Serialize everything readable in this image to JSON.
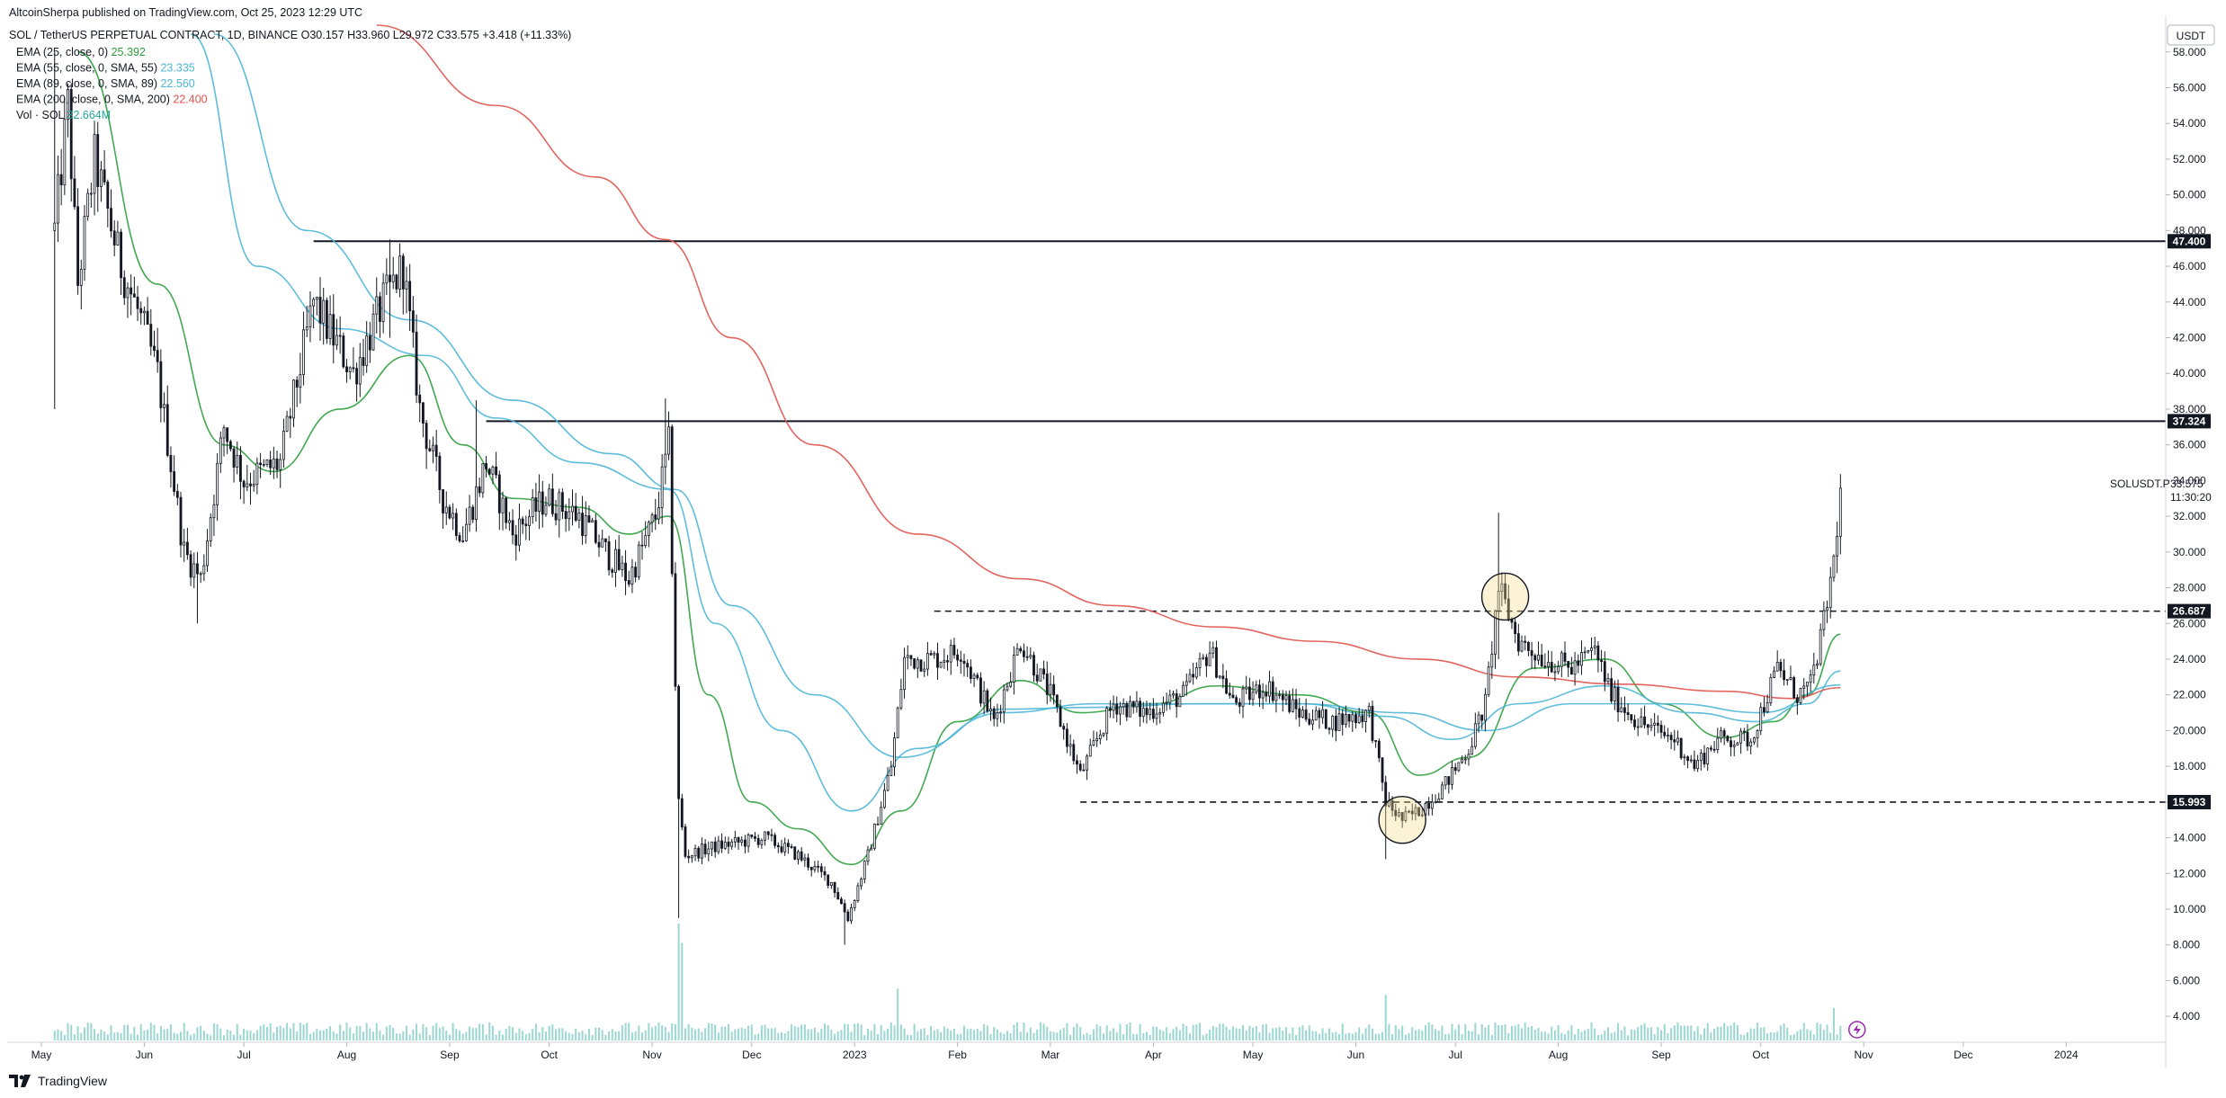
{
  "header": {
    "published": "AltcoinSherpa published on TradingView.com, Oct 25, 2023 12:29 UTC",
    "symbol": "SOL / TetherUS PERPETUAL CONTRACT, 1D, BINANCE",
    "ohlc": {
      "o": "O30.157",
      "h": "H33.960",
      "l": "L29.972",
      "c": "C33.575",
      "chg": "+3.418 (+11.33%)"
    }
  },
  "indicators": [
    {
      "label": "EMA (25, close, 0)",
      "value": "25.392",
      "color": "#2e9e3e"
    },
    {
      "label": "EMA (55, close, 0, SMA, 55)",
      "value": "23.335",
      "color": "#4db6d6"
    },
    {
      "label": "EMA (89, close, 0, SMA, 89)",
      "value": "22.560",
      "color": "#4db6d6"
    },
    {
      "label": "EMA (200, close, 0, SMA, 200)",
      "value": "22.400",
      "color": "#e0544f"
    },
    {
      "label": "Vol · SOL",
      "value": "32.664M",
      "color": "#26a69a"
    }
  ],
  "axis": {
    "currency": "USDT",
    "symbol_tag": "SOLUSDT.P",
    "last_price": "33.575",
    "countdown": "11:30:20"
  },
  "footer": {
    "brand": "TradingView"
  },
  "chart_data": {
    "type": "candlestick",
    "title": "SOL / TetherUS PERPETUAL CONTRACT, 1D, BINANCE",
    "y_axis": {
      "min": 3,
      "max": 59.5,
      "position": "right",
      "ticks": [
        4,
        6,
        8,
        10,
        12,
        14,
        16,
        18,
        20,
        22,
        24,
        26,
        28,
        30,
        32,
        34,
        36,
        38,
        40,
        42,
        44,
        46,
        48,
        50,
        52,
        54,
        56,
        58
      ]
    },
    "x_axis": {
      "range": [
        "2022-05-01",
        "2024-01-31"
      ],
      "ticks": [
        {
          "date": "2022-05-01",
          "label": "May"
        },
        {
          "date": "2022-06-01",
          "label": "Jun"
        },
        {
          "date": "2022-07-01",
          "label": "Jul"
        },
        {
          "date": "2022-08-01",
          "label": "Aug"
        },
        {
          "date": "2022-09-01",
          "label": "Sep"
        },
        {
          "date": "2022-10-01",
          "label": "Oct"
        },
        {
          "date": "2022-11-01",
          "label": "Nov"
        },
        {
          "date": "2022-12-01",
          "label": "Dec"
        },
        {
          "date": "2023-01-01",
          "label": "2023"
        },
        {
          "date": "2023-02-01",
          "label": "Feb"
        },
        {
          "date": "2023-03-01",
          "label": "Mar"
        },
        {
          "date": "2023-04-01",
          "label": "Apr"
        },
        {
          "date": "2023-05-01",
          "label": "May"
        },
        {
          "date": "2023-06-01",
          "label": "Jun"
        },
        {
          "date": "2023-07-01",
          "label": "Jul"
        },
        {
          "date": "2023-08-01",
          "label": "Aug"
        },
        {
          "date": "2023-09-01",
          "label": "Sep"
        },
        {
          "date": "2023-10-01",
          "label": "Oct"
        },
        {
          "date": "2023-11-01",
          "label": "Nov"
        },
        {
          "date": "2023-12-01",
          "label": "Dec"
        },
        {
          "date": "2024-01-01",
          "label": "2024"
        }
      ]
    },
    "price_path": [
      [
        "2022-05-05",
        48
      ],
      [
        "2022-05-09",
        55
      ],
      [
        "2022-05-12",
        45
      ],
      [
        "2022-05-17",
        52
      ],
      [
        "2022-05-25",
        46
      ],
      [
        "2022-05-31",
        43
      ],
      [
        "2022-06-05",
        40
      ],
      [
        "2022-06-13",
        30
      ],
      [
        "2022-06-18",
        28.5
      ],
      [
        "2022-06-25",
        37
      ],
      [
        "2022-07-01",
        34
      ],
      [
        "2022-07-12",
        35
      ],
      [
        "2022-07-22",
        44
      ],
      [
        "2022-07-28",
        42
      ],
      [
        "2022-08-03",
        40
      ],
      [
        "2022-08-12",
        44
      ],
      [
        "2022-08-18",
        46
      ],
      [
        "2022-08-23",
        38
      ],
      [
        "2022-08-30",
        33
      ],
      [
        "2022-09-05",
        31
      ],
      [
        "2022-09-12",
        35
      ],
      [
        "2022-09-20",
        31
      ],
      [
        "2022-09-30",
        33
      ],
      [
        "2022-10-10",
        32
      ],
      [
        "2022-10-18",
        30
      ],
      [
        "2022-10-25",
        28.5
      ],
      [
        "2022-11-02",
        32
      ],
      [
        "2022-11-06",
        36
      ],
      [
        "2022-11-09",
        16
      ],
      [
        "2022-11-11",
        13
      ],
      [
        "2022-11-20",
        13.5
      ],
      [
        "2022-12-05",
        14
      ],
      [
        "2022-12-15",
        13
      ],
      [
        "2022-12-25",
        11.5
      ],
      [
        "2022-12-30",
        9.5
      ],
      [
        "2023-01-05",
        13
      ],
      [
        "2023-01-12",
        18
      ],
      [
        "2023-01-16",
        24
      ],
      [
        "2023-01-25",
        24
      ],
      [
        "2023-02-02",
        24.5
      ],
      [
        "2023-02-12",
        20.5
      ],
      [
        "2023-02-20",
        25
      ],
      [
        "2023-03-01",
        22
      ],
      [
        "2023-03-10",
        17.5
      ],
      [
        "2023-03-20",
        21.5
      ],
      [
        "2023-03-30",
        21
      ],
      [
        "2023-04-10",
        22
      ],
      [
        "2023-04-18",
        24.5
      ],
      [
        "2023-04-25",
        21.5
      ],
      [
        "2023-05-05",
        22.5
      ],
      [
        "2023-05-15",
        21
      ],
      [
        "2023-05-25",
        20.5
      ],
      [
        "2023-06-05",
        21
      ],
      [
        "2023-06-10",
        16
      ],
      [
        "2023-06-15",
        15
      ],
      [
        "2023-06-20",
        15.5
      ],
      [
        "2023-06-28",
        17
      ],
      [
        "2023-07-05",
        19
      ],
      [
        "2023-07-10",
        21.5
      ],
      [
        "2023-07-14",
        28
      ],
      [
        "2023-07-20",
        25
      ],
      [
        "2023-07-28",
        24
      ],
      [
        "2023-08-05",
        23.5
      ],
      [
        "2023-08-12",
        24.5
      ],
      [
        "2023-08-17",
        22
      ],
      [
        "2023-08-25",
        20.5
      ],
      [
        "2023-09-05",
        19.5
      ],
      [
        "2023-09-11",
        18
      ],
      [
        "2023-09-18",
        19.5
      ],
      [
        "2023-09-28",
        19.5
      ],
      [
        "2023-10-03",
        22
      ],
      [
        "2023-10-06",
        23.5
      ],
      [
        "2023-10-12",
        22
      ],
      [
        "2023-10-16",
        22.5
      ],
      [
        "2023-10-20",
        26
      ],
      [
        "2023-10-23",
        29.5
      ],
      [
        "2023-10-25",
        33.575
      ]
    ],
    "spikes": [
      {
        "date": "2022-05-05",
        "high": 58,
        "low": 38
      },
      {
        "date": "2022-06-17",
        "high": 30,
        "low": 26
      },
      {
        "date": "2022-08-14",
        "high": 47.5,
        "low": 42
      },
      {
        "date": "2022-09-09",
        "high": 38.5,
        "low": 33
      },
      {
        "date": "2022-11-05",
        "high": 38.6,
        "low": 34
      },
      {
        "date": "2022-11-09",
        "high": 16,
        "low": 9.5
      },
      {
        "date": "2022-12-29",
        "high": 10.5,
        "low": 8
      },
      {
        "date": "2023-06-10",
        "high": 16.5,
        "low": 12.8
      },
      {
        "date": "2023-07-14",
        "high": 32.2,
        "low": 24
      }
    ],
    "ema_series": [
      {
        "period": 25,
        "color": "#2e9e3e",
        "points": [
          [
            "2022-05-12",
            58
          ],
          [
            "2022-06-05",
            45
          ],
          [
            "2022-06-25",
            36
          ],
          [
            "2022-07-10",
            34.5
          ],
          [
            "2022-07-30",
            38
          ],
          [
            "2022-08-20",
            41
          ],
          [
            "2022-09-05",
            36
          ],
          [
            "2022-09-20",
            33
          ],
          [
            "2022-10-10",
            32.5
          ],
          [
            "2022-10-25",
            31
          ],
          [
            "2022-11-06",
            32
          ],
          [
            "2022-11-18",
            22
          ],
          [
            "2022-12-01",
            16
          ],
          [
            "2022-12-15",
            14.5
          ],
          [
            "2022-12-31",
            12.5
          ],
          [
            "2023-01-15",
            15.5
          ],
          [
            "2023-02-01",
            20.5
          ],
          [
            "2023-02-20",
            22.8
          ],
          [
            "2023-03-10",
            21
          ],
          [
            "2023-04-01",
            21.5
          ],
          [
            "2023-04-20",
            22.5
          ],
          [
            "2023-05-15",
            22
          ],
          [
            "2023-06-05",
            21
          ],
          [
            "2023-06-20",
            17.5
          ],
          [
            "2023-07-05",
            18.5
          ],
          [
            "2023-07-25",
            23.5
          ],
          [
            "2023-08-15",
            24
          ],
          [
            "2023-09-01",
            21.5
          ],
          [
            "2023-09-20",
            19.6
          ],
          [
            "2023-10-05",
            20.5
          ],
          [
            "2023-10-15",
            22
          ],
          [
            "2023-10-25",
            25.392
          ]
        ]
      },
      {
        "period": 55,
        "color": "#4db6d6",
        "points": [
          [
            "2022-06-15",
            59
          ],
          [
            "2022-07-05",
            46
          ],
          [
            "2022-07-30",
            42.5
          ],
          [
            "2022-08-25",
            41
          ],
          [
            "2022-09-15",
            37.5
          ],
          [
            "2022-10-10",
            35
          ],
          [
            "2022-11-06",
            33.5
          ],
          [
            "2022-11-20",
            26
          ],
          [
            "2022-12-10",
            20
          ],
          [
            "2022-12-31",
            15.5
          ],
          [
            "2023-01-20",
            19
          ],
          [
            "2023-02-15",
            21.2
          ],
          [
            "2023-03-15",
            21.3
          ],
          [
            "2023-04-15",
            21.5
          ],
          [
            "2023-05-15",
            21.5
          ],
          [
            "2023-06-10",
            20.8
          ],
          [
            "2023-06-30",
            19.5
          ],
          [
            "2023-07-20",
            21.5
          ],
          [
            "2023-08-15",
            22.5
          ],
          [
            "2023-09-10",
            21
          ],
          [
            "2023-09-30",
            20.5
          ],
          [
            "2023-10-15",
            21.5
          ],
          [
            "2023-10-25",
            23.335
          ]
        ]
      },
      {
        "period": 89,
        "color": "#4db6d6",
        "points": [
          [
            "2022-06-22",
            59
          ],
          [
            "2022-07-20",
            48
          ],
          [
            "2022-08-20",
            43
          ],
          [
            "2022-09-20",
            38.5
          ],
          [
            "2022-10-20",
            35.5
          ],
          [
            "2022-11-08",
            33.5
          ],
          [
            "2022-11-25",
            27
          ],
          [
            "2022-12-20",
            22
          ],
          [
            "2023-01-15",
            18.5
          ],
          [
            "2023-02-15",
            21
          ],
          [
            "2023-03-15",
            21.5
          ],
          [
            "2023-04-15",
            21.5
          ],
          [
            "2023-05-15",
            21.5
          ],
          [
            "2023-06-15",
            21
          ],
          [
            "2023-07-10",
            20
          ],
          [
            "2023-08-05",
            21.5
          ],
          [
            "2023-09-05",
            21.5
          ],
          [
            "2023-10-01",
            21
          ],
          [
            "2023-10-25",
            22.56
          ]
        ]
      },
      {
        "period": 200,
        "color": "#e0544f",
        "points": [
          [
            "2022-08-10",
            59.5
          ],
          [
            "2022-09-15",
            55
          ],
          [
            "2022-10-15",
            51
          ],
          [
            "2022-11-05",
            47.5
          ],
          [
            "2022-11-25",
            42
          ],
          [
            "2022-12-20",
            36
          ],
          [
            "2023-01-20",
            31
          ],
          [
            "2023-02-20",
            28.5
          ],
          [
            "2023-03-20",
            27
          ],
          [
            "2023-04-20",
            25.8
          ],
          [
            "2023-05-20",
            25
          ],
          [
            "2023-06-20",
            24
          ],
          [
            "2023-07-20",
            23
          ],
          [
            "2023-08-20",
            22.6
          ],
          [
            "2023-09-20",
            22.2
          ],
          [
            "2023-10-10",
            21.8
          ],
          [
            "2023-10-25",
            22.4
          ]
        ]
      }
    ],
    "horizontal_levels": [
      {
        "price": 47.4,
        "label": "47.400",
        "style": "solid",
        "from": "2022-07-22"
      },
      {
        "price": 37.324,
        "label": "37.324",
        "style": "solid",
        "from": "2022-09-12"
      },
      {
        "price": 26.687,
        "label": "26.687",
        "style": "dashed",
        "from": "2023-01-25"
      },
      {
        "price": 15.993,
        "label": "15.993",
        "style": "dashed",
        "from": "2023-03-10"
      }
    ],
    "circle_markers": [
      {
        "date": "2023-06-15",
        "price": 15
      },
      {
        "date": "2023-07-16",
        "price": 27.5
      }
    ],
    "volume": {
      "unit": "M SOL",
      "spikes": [
        [
          "2022-11-09",
          90
        ],
        [
          "2022-11-10",
          75
        ],
        [
          "2023-01-14",
          40
        ],
        [
          "2023-06-10",
          35
        ],
        [
          "2023-10-23",
          25
        ]
      ]
    }
  }
}
